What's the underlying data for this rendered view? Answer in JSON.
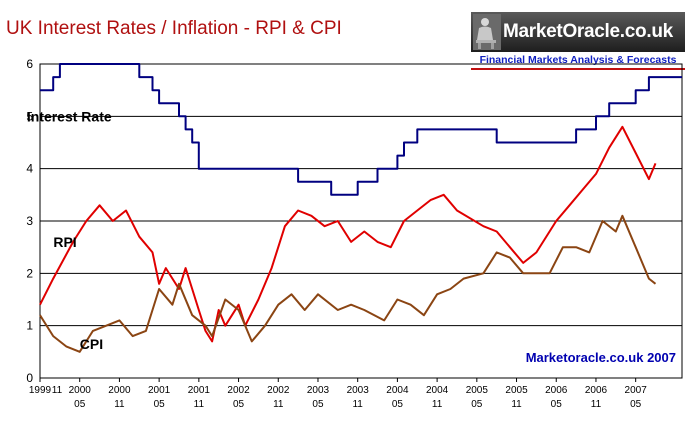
{
  "header": {
    "title": "UK Interest Rates / Inflation - RPI & CPI"
  },
  "brand": {
    "name": "MarketOracle.co.uk",
    "tagline": "Financial Markets Analysis & Forecasts",
    "logo_icon": "oracle-figure-icon"
  },
  "chart_data": {
    "type": "line",
    "title": "UK Interest Rates / Inflation - RPI & CPI",
    "xlabel": "",
    "ylabel": "",
    "ylim": [
      0,
      6
    ],
    "yticks": [
      "0",
      "1",
      "2",
      "3",
      "4",
      "5",
      "6"
    ],
    "x_range": [
      "1999-11",
      "2007-12"
    ],
    "x_tick_labels": [
      {
        "x": "1999-11",
        "year": "1999",
        "month": "11"
      },
      {
        "x": "2000-05",
        "year": "2000",
        "month": "05"
      },
      {
        "x": "2000-11",
        "year": "2000",
        "month": "11"
      },
      {
        "x": "2001-05",
        "year": "2001",
        "month": "05"
      },
      {
        "x": "2001-11",
        "year": "2001",
        "month": "11"
      },
      {
        "x": "2002-05",
        "year": "2002",
        "month": "05"
      },
      {
        "x": "2002-11",
        "year": "2002",
        "month": "11"
      },
      {
        "x": "2003-05",
        "year": "2003",
        "month": "05"
      },
      {
        "x": "2003-11",
        "year": "2003",
        "month": "11"
      },
      {
        "x": "2004-05",
        "year": "2004",
        "month": "05"
      },
      {
        "x": "2004-11",
        "year": "2004",
        "month": "11"
      },
      {
        "x": "2005-05",
        "year": "2005",
        "month": "05"
      },
      {
        "x": "2005-11",
        "year": "2005",
        "month": "11"
      },
      {
        "x": "2006-05",
        "year": "2006",
        "month": "05"
      },
      {
        "x": "2006-11",
        "year": "2006",
        "month": "11"
      },
      {
        "x": "2007-05",
        "year": "2007",
        "month": "05"
      }
    ],
    "grid": "horizontal",
    "watermark": "Marketoracle.co.uk 2007",
    "series": [
      {
        "name": "Interest Rate",
        "color": "#000080",
        "step": true,
        "points": [
          [
            "1999-11",
            5.5
          ],
          [
            "2000-01",
            5.75
          ],
          [
            "2000-02",
            6.0
          ],
          [
            "2001-02",
            5.75
          ],
          [
            "2001-04",
            5.5
          ],
          [
            "2001-05",
            5.25
          ],
          [
            "2001-08",
            5.0
          ],
          [
            "2001-09",
            4.75
          ],
          [
            "2001-10",
            4.5
          ],
          [
            "2001-11",
            4.0
          ],
          [
            "2003-02",
            3.75
          ],
          [
            "2003-07",
            3.5
          ],
          [
            "2003-11",
            3.75
          ],
          [
            "2004-02",
            4.0
          ],
          [
            "2004-05",
            4.25
          ],
          [
            "2004-06",
            4.5
          ],
          [
            "2004-08",
            4.75
          ],
          [
            "2005-08",
            4.5
          ],
          [
            "2006-08",
            4.75
          ],
          [
            "2006-11",
            5.0
          ],
          [
            "2007-01",
            5.25
          ],
          [
            "2007-05",
            5.5
          ],
          [
            "2007-07",
            5.75
          ],
          [
            "2007-12",
            5.75
          ]
        ]
      },
      {
        "name": "RPI",
        "color": "#e00000",
        "step": false,
        "points": [
          [
            "1999-11",
            1.4
          ],
          [
            "2000-01",
            1.9
          ],
          [
            "2000-04",
            2.6
          ],
          [
            "2000-06",
            3.0
          ],
          [
            "2000-08",
            3.3
          ],
          [
            "2000-10",
            3.0
          ],
          [
            "2000-12",
            3.2
          ],
          [
            "2001-02",
            2.7
          ],
          [
            "2001-04",
            2.4
          ],
          [
            "2001-05",
            1.8
          ],
          [
            "2001-06",
            2.1
          ],
          [
            "2001-08",
            1.7
          ],
          [
            "2001-09",
            2.1
          ],
          [
            "2001-10",
            1.7
          ],
          [
            "2001-11",
            1.3
          ],
          [
            "2001-12",
            0.9
          ],
          [
            "2002-01",
            0.7
          ],
          [
            "2002-02",
            1.3
          ],
          [
            "2002-03",
            1.0
          ],
          [
            "2002-05",
            1.4
          ],
          [
            "2002-06",
            1.0
          ],
          [
            "2002-08",
            1.5
          ],
          [
            "2002-10",
            2.1
          ],
          [
            "2002-12",
            2.9
          ],
          [
            "2003-02",
            3.2
          ],
          [
            "2003-04",
            3.1
          ],
          [
            "2003-06",
            2.9
          ],
          [
            "2003-08",
            3.0
          ],
          [
            "2003-10",
            2.6
          ],
          [
            "2003-12",
            2.8
          ],
          [
            "2004-02",
            2.6
          ],
          [
            "2004-04",
            2.5
          ],
          [
            "2004-06",
            3.0
          ],
          [
            "2004-08",
            3.2
          ],
          [
            "2004-10",
            3.4
          ],
          [
            "2004-12",
            3.5
          ],
          [
            "2005-02",
            3.2
          ],
          [
            "2005-06",
            2.9
          ],
          [
            "2005-08",
            2.8
          ],
          [
            "2005-10",
            2.5
          ],
          [
            "2005-12",
            2.2
          ],
          [
            "2006-02",
            2.4
          ],
          [
            "2006-05",
            3.0
          ],
          [
            "2006-07",
            3.3
          ],
          [
            "2006-09",
            3.6
          ],
          [
            "2006-11",
            3.9
          ],
          [
            "2007-01",
            4.4
          ],
          [
            "2007-03",
            4.8
          ],
          [
            "2007-05",
            4.3
          ],
          [
            "2007-07",
            3.8
          ],
          [
            "2007-08",
            4.1
          ]
        ]
      },
      {
        "name": "CPI",
        "color": "#8b4513",
        "step": false,
        "points": [
          [
            "1999-11",
            1.2
          ],
          [
            "2000-01",
            0.8
          ],
          [
            "2000-03",
            0.6
          ],
          [
            "2000-05",
            0.5
          ],
          [
            "2000-07",
            0.9
          ],
          [
            "2000-09",
            1.0
          ],
          [
            "2000-11",
            1.1
          ],
          [
            "2001-01",
            0.8
          ],
          [
            "2001-03",
            0.9
          ],
          [
            "2001-05",
            1.7
          ],
          [
            "2001-07",
            1.4
          ],
          [
            "2001-08",
            1.8
          ],
          [
            "2001-10",
            1.2
          ],
          [
            "2001-12",
            1.0
          ],
          [
            "2002-01",
            0.8
          ],
          [
            "2002-03",
            1.5
          ],
          [
            "2002-05",
            1.3
          ],
          [
            "2002-07",
            0.7
          ],
          [
            "2002-09",
            1.0
          ],
          [
            "2002-11",
            1.4
          ],
          [
            "2003-01",
            1.6
          ],
          [
            "2003-03",
            1.3
          ],
          [
            "2003-05",
            1.6
          ],
          [
            "2003-08",
            1.3
          ],
          [
            "2003-10",
            1.4
          ],
          [
            "2003-12",
            1.3
          ],
          [
            "2004-03",
            1.1
          ],
          [
            "2004-05",
            1.5
          ],
          [
            "2004-07",
            1.4
          ],
          [
            "2004-09",
            1.2
          ],
          [
            "2004-11",
            1.6
          ],
          [
            "2005-01",
            1.7
          ],
          [
            "2005-03",
            1.9
          ],
          [
            "2005-06",
            2.0
          ],
          [
            "2005-08",
            2.4
          ],
          [
            "2005-10",
            2.3
          ],
          [
            "2005-12",
            2.0
          ],
          [
            "2006-02",
            2.0
          ],
          [
            "2006-04",
            2.0
          ],
          [
            "2006-06",
            2.5
          ],
          [
            "2006-08",
            2.5
          ],
          [
            "2006-10",
            2.4
          ],
          [
            "2006-12",
            3.0
          ],
          [
            "2007-02",
            2.8
          ],
          [
            "2007-03",
            3.1
          ],
          [
            "2007-05",
            2.5
          ],
          [
            "2007-07",
            1.9
          ],
          [
            "2007-08",
            1.8
          ]
        ]
      }
    ],
    "series_labels": [
      {
        "text": "Interest Rate",
        "x": "2000-02",
        "y": 5.0
      },
      {
        "text": "RPI",
        "x": "2000-06",
        "y": 2.6
      },
      {
        "text": "CPI",
        "x": "2000-10",
        "y": 0.65
      }
    ]
  }
}
